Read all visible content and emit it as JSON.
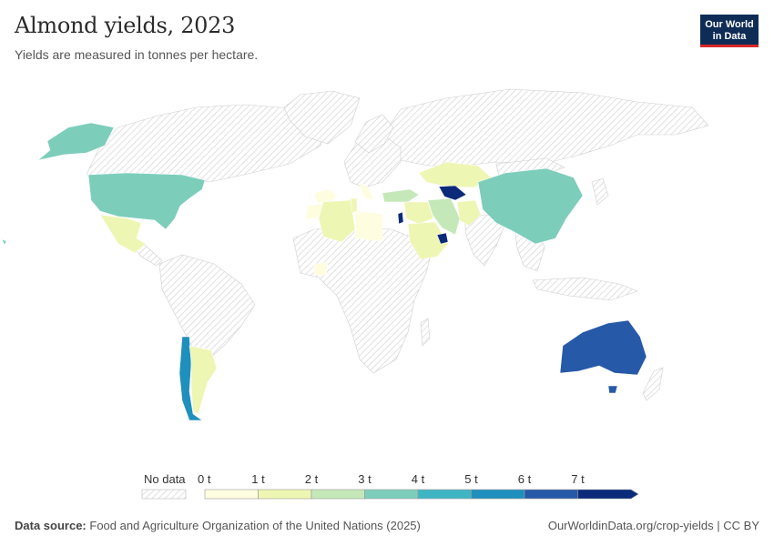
{
  "header": {
    "title": "Almond yields, 2023",
    "subtitle": "Yields are measured in tonnes per hectare.",
    "logo_line1": "Our World",
    "logo_line2": "in Data"
  },
  "legend": {
    "no_data_label": "No data",
    "bins": [
      {
        "label": "0 t",
        "color": "#fffde0"
      },
      {
        "label": "1 t",
        "color": "#eef6b3"
      },
      {
        "label": "2 t",
        "color": "#c5e8b8"
      },
      {
        "label": "3 t",
        "color": "#7dcdbb"
      },
      {
        "label": "4 t",
        "color": "#3fb5c4"
      },
      {
        "label": "5 t",
        "color": "#1f8fbd"
      },
      {
        "label": "6 t",
        "color": "#2659a8"
      },
      {
        "label": "7 t",
        "color": "#0c2a7a"
      }
    ]
  },
  "regions": [
    {
      "name": "Australia",
      "color": "#2659a8"
    },
    {
      "name": "Chile",
      "color": "#1f8fbd"
    },
    {
      "name": "Argentina",
      "color": "#eef6b3"
    },
    {
      "name": "United States",
      "color": "#7dcdbb"
    },
    {
      "name": "Mexico",
      "color": "#eef6b3"
    },
    {
      "name": "China",
      "color": "#7dcdbb"
    },
    {
      "name": "Kazakhstan",
      "color": "#eef6b3"
    },
    {
      "name": "Uzbekistan",
      "color": "#0c2a7a"
    },
    {
      "name": "Iran",
      "color": "#c5e8b8"
    },
    {
      "name": "Afghanistan",
      "color": "#eef6b3"
    },
    {
      "name": "Saudi Arabia",
      "color": "#eef6b3"
    },
    {
      "name": "Algeria",
      "color": "#eef6b3"
    },
    {
      "name": "Libya",
      "color": "#fffde0"
    },
    {
      "name": "Turkey",
      "color": "#c5e8b8"
    },
    {
      "name": "Israel",
      "color": "#0c2a7a"
    },
    {
      "name": "Spain",
      "color": "#fffde0"
    },
    {
      "name": "Italy",
      "color": "#fffde0"
    }
  ],
  "footer": {
    "source_label": "Data source:",
    "source_text": "Food and Agriculture Organization of the United Nations (2025)",
    "credit": "OurWorldinData.org/crop-yields | CC BY"
  }
}
